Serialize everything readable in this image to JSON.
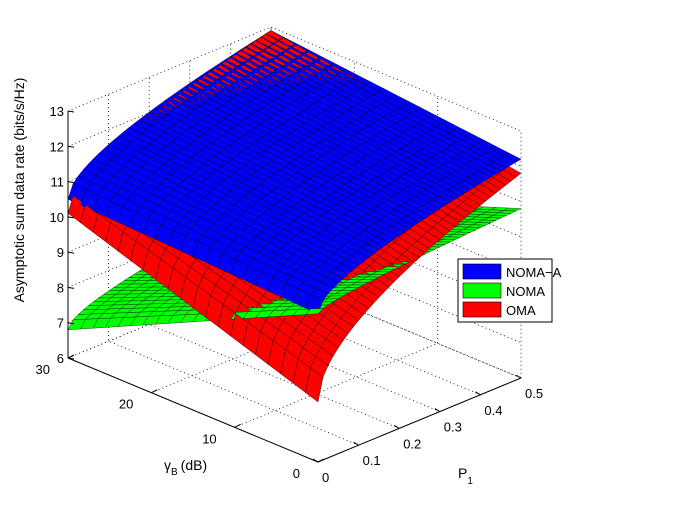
{
  "chart_data": {
    "type": "surface",
    "zlabel": "Asymptotic sum data rate (bits/s/Hz)",
    "xlabel_main": "P",
    "xlabel_sub": "1",
    "ylabel_main": "γ",
    "ylabel_sub": "B",
    "ylabel_unit": "(dB)",
    "xlim": [
      0,
      0.5
    ],
    "ylim": [
      0,
      30
    ],
    "zlim": [
      6,
      13
    ],
    "x_ticks": [
      "0",
      "0.1",
      "0.2",
      "0.3",
      "0.4",
      "0.5"
    ],
    "y_ticks": [
      "0",
      "10",
      "20",
      "30"
    ],
    "z_ticks": [
      "6",
      "7",
      "8",
      "9",
      "10",
      "11",
      "12",
      "13"
    ],
    "legend_position": "right",
    "grid": true,
    "series": [
      {
        "name": "NOMA−A",
        "color": "#0000ff",
        "corners": {
          "x0_y30": 10.5,
          "x05_y30": 12.9,
          "x0_y0": 10.2,
          "x05_y0": 12.2
        }
      },
      {
        "name": "NOMA",
        "color": "#00ff00",
        "corners": {
          "x0_y30": 6.8,
          "x05_y30": 8.2,
          "x0_y0": 10.2,
          "x05_y0": 10.8
        }
      },
      {
        "name": "OMA",
        "color": "#ff0000",
        "corners": {
          "x0_y30": 10.1,
          "x05_y30": 12.9,
          "x0_y0": 7.7,
          "x05_y0": 11.8
        }
      }
    ]
  }
}
